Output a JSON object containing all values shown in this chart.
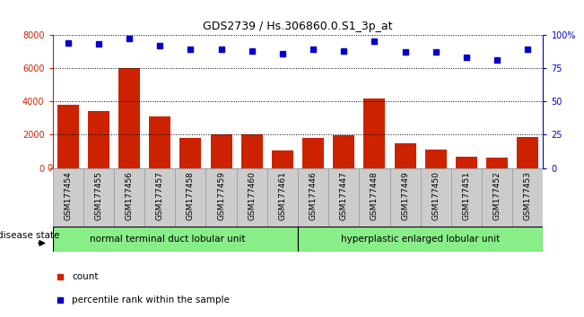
{
  "title": "GDS2739 / Hs.306860.0.S1_3p_at",
  "categories": [
    "GSM177454",
    "GSM177455",
    "GSM177456",
    "GSM177457",
    "GSM177458",
    "GSM177459",
    "GSM177460",
    "GSM177461",
    "GSM177446",
    "GSM177447",
    "GSM177448",
    "GSM177449",
    "GSM177450",
    "GSM177451",
    "GSM177452",
    "GSM177453"
  ],
  "counts": [
    3800,
    3400,
    6000,
    3100,
    1800,
    2050,
    2000,
    1050,
    1800,
    1950,
    4150,
    1500,
    1100,
    700,
    600,
    1850
  ],
  "percentiles": [
    94,
    93,
    97,
    92,
    89,
    89,
    88,
    86,
    89,
    88,
    95,
    87,
    87,
    83,
    81,
    89
  ],
  "bar_color": "#cc2200",
  "dot_color": "#0000cc",
  "ylim_left": [
    0,
    8000
  ],
  "ylim_right": [
    0,
    100
  ],
  "yticks_left": [
    0,
    2000,
    4000,
    6000,
    8000
  ],
  "yticks_right": [
    0,
    25,
    50,
    75,
    100
  ],
  "ytick_labels_right": [
    "0",
    "25",
    "50",
    "75",
    "100%"
  ],
  "group1_label": "normal terminal duct lobular unit",
  "group2_label": "hyperplastic enlarged lobular unit",
  "disease_state_label": "disease state",
  "legend_count_label": "count",
  "legend_percentile_label": "percentile rank within the sample",
  "group_color": "#88ee88",
  "xlabel_bg": "#cccccc",
  "group1_count": 8,
  "group2_count": 8
}
